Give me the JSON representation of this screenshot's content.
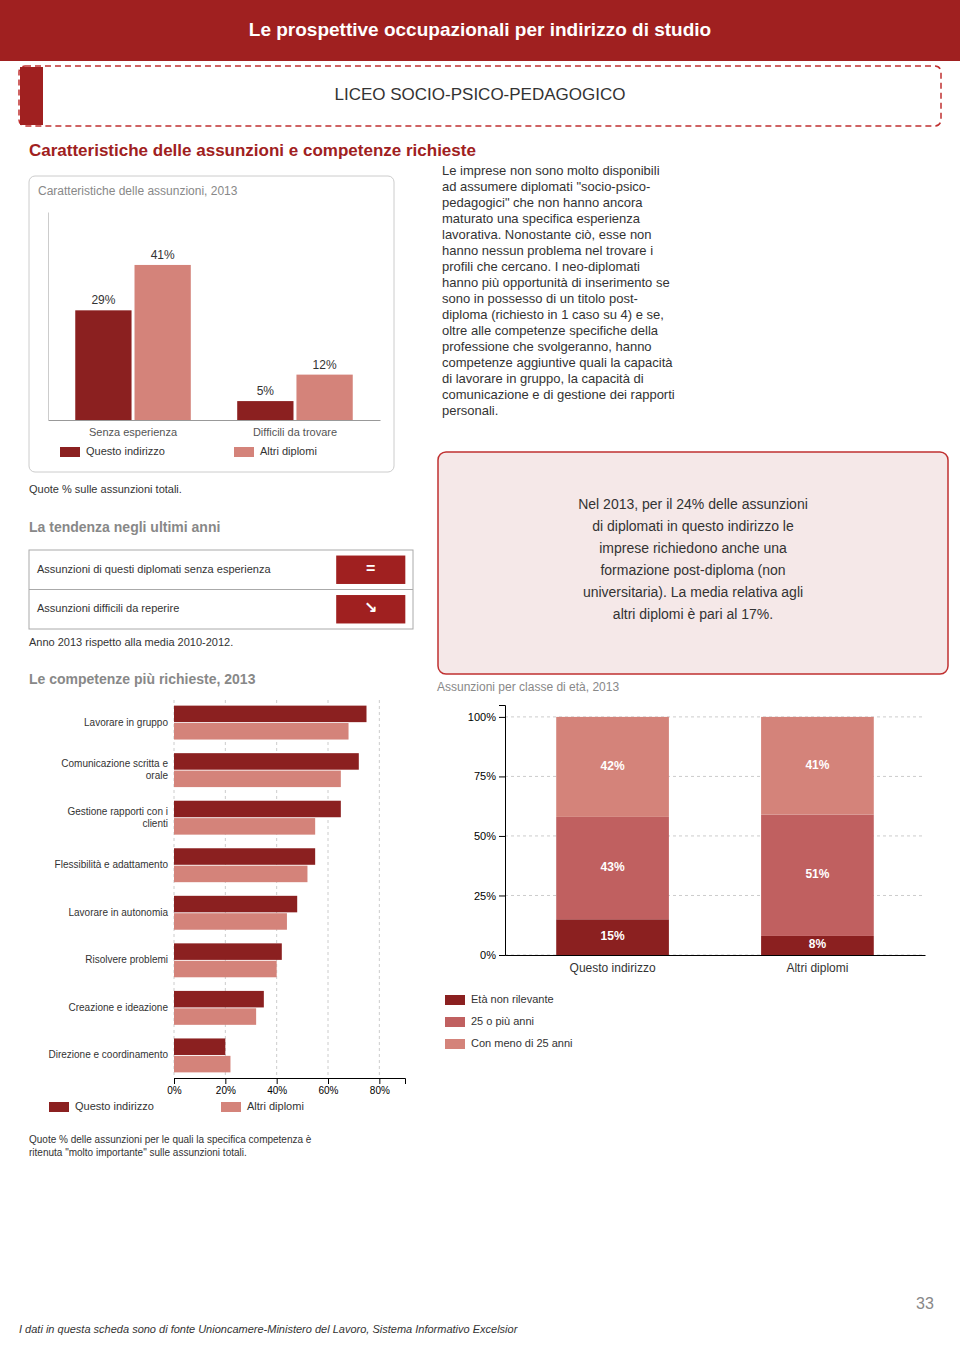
{
  "title": "Le prospettive occupazionali per indirizzo di studio",
  "subtitle": "LICEO SOCIO-PSICO-PEDAGOGICO",
  "annotations": [
    "Caratteristiche delle assunzioni e competenze richieste",
    "Le imprese non sono molto disponibili\nad assumere diplomati \"socio-psico-\npedagogici\" che non hanno ancora\nmaturato una specifica esperienza\nlavorativa. Nonostante ciò, esse non\nhanno nessun problema nel trovare i\nprofili che cercano. I neo-diplomati\nhanno più opportunità di inserimento se\nsono in possesso di un titolo post-\ndiploma (richiesto in 1 caso su 4) e se,\noltre alle competenze specifiche della\nprofessione che svolgeranno, hanno\ncompetenze aggiuntive quali la capacità\ndi lavorare in gruppo, la capacità di\ncomunicazione e di gestione dei rapporti\npersonali.",
    "Nel 2013, per il 24% delle assunzioni\ndi diplomati in questo indirizzo le\nimprese richiedono anche una\nformazione post-diploma (non\nuniversitaria). La media relativa agli\naltri diplomi è pari al 17%.",
    "La tendenza negli ultimi anni",
    "Assunzioni di questi diplomati senza esperienza",
    "Assunzioni difficili da reperire",
    "=",
    "↘",
    "Anno 2013 rispetto alla media 2010-2012.",
    "I dati in questa scheda sono di fonte Unioncamere-Ministero del Lavoro, Sistema Informativo Excelsior",
    "33"
  ],
  "chart_data": [
    {
      "type": "bar",
      "title": "Caratteristiche delle assunzioni, 2013",
      "categories": [
        "Senza esperienza",
        "Difficili da trovare"
      ],
      "series": [
        {
          "name": "Questo indirizzo",
          "color": "#8B2020",
          "values": [
            29,
            5
          ],
          "value_labels": [
            "29%",
            "5%"
          ]
        },
        {
          "name": "Altri diplomi",
          "color": "#D4837A",
          "values": [
            41,
            12
          ],
          "value_labels": [
            "41%",
            "12%"
          ]
        }
      ],
      "ylim": [
        0,
        55
      ],
      "data_labels": true,
      "tick_labels": "x",
      "grid": false,
      "annotations": [
        "Quote % sulle assunzioni totali."
      ]
    },
    {
      "type": "bar",
      "orientation": "horizontal",
      "title": "Le competenze più richieste, 2013",
      "categories": [
        "Lavorare in gruppo",
        "Comunicazione scritta e\norale",
        "Gestione rapporti con i\nclienti",
        "Flessibilità e adattamento",
        "Lavorare in autonomia",
        "Risolvere problemi",
        "Creazione e ideazione",
        "Direzione e coordinamento"
      ],
      "series": [
        {
          "name": "Questo indirizzo",
          "color": "#8B2020",
          "values": [
            75,
            72,
            65,
            55,
            48,
            42,
            35,
            20
          ]
        },
        {
          "name": "Altri diplomi",
          "color": "#D4837A",
          "values": [
            68,
            65,
            55,
            52,
            44,
            40,
            32,
            22
          ]
        }
      ],
      "xlim": [
        0,
        90
      ],
      "xticks": [
        {
          "value": 0,
          "label": "0%"
        },
        {
          "value": 20,
          "label": "20%"
        },
        {
          "value": 40,
          "label": "40%"
        },
        {
          "value": 60,
          "label": "60%"
        },
        {
          "value": 80,
          "label": "80%"
        }
      ],
      "grid": true,
      "annotations": [
        "Quote % delle assunzioni per le quali la specifica competenza è\nritenuta \"molto importante\" sulle assunzioni totali."
      ]
    },
    {
      "type": "bar",
      "stacked": true,
      "title": "Assunzioni per classe di età, 2013",
      "categories": [
        "Questo indirizzo",
        "Altri diplomi"
      ],
      "series": [
        {
          "name": "Età non rilevante",
          "color": "#8B2020",
          "values": [
            15,
            8
          ],
          "value_labels": [
            "15%",
            "8%"
          ]
        },
        {
          "name": "25 o più anni",
          "color": "#C06060",
          "values": [
            43,
            51
          ],
          "value_labels": [
            "43%",
            "51%"
          ]
        },
        {
          "name": "Con meno di 25 anni",
          "color": "#D4837A",
          "values": [
            42,
            41
          ],
          "value_labels": [
            "42%",
            "41%"
          ]
        }
      ],
      "ylim": [
        0,
        105
      ],
      "yticks": [
        {
          "value": 0,
          "label": "0%"
        },
        {
          "value": 25,
          "label": "25%"
        },
        {
          "value": 50,
          "label": "50%"
        },
        {
          "value": 75,
          "label": "75%"
        },
        {
          "value": 100,
          "label": "100%"
        }
      ],
      "data_labels": true,
      "grid": true
    }
  ]
}
